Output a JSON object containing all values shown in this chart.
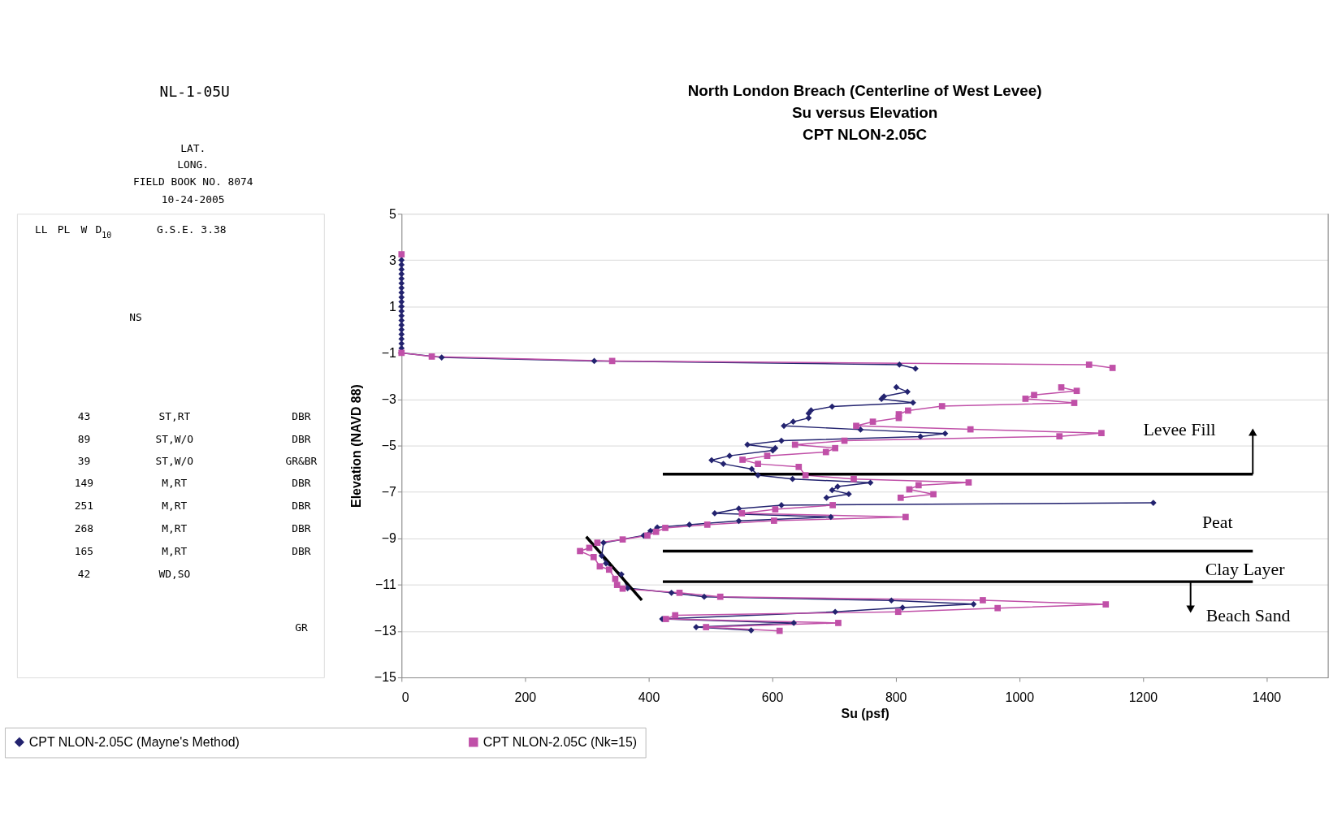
{
  "chart_data": [
    {
      "type": "other",
      "title": "NL-1-05U",
      "annotations": [
        "LAT.",
        "LONG.",
        "FIELD BOOK NO. 8074",
        "10-24-2005",
        "LL",
        "PL",
        "W",
        "D",
        "10",
        "G.S.E. 3.38",
        "NS",
        "43",
        "ST,RT",
        "DBR",
        "89",
        "ST,W/O",
        "DBR",
        "39",
        "ST,W/O",
        "GR&BR",
        "149",
        "M,RT",
        "DBR",
        "251",
        "M,RT",
        "DBR",
        "268",
        "M,RT",
        "DBR",
        "165",
        "M,RT",
        "DBR",
        "42",
        "WD,SO",
        "GR"
      ]
    },
    {
      "type": "line",
      "title": "North London Breach (Centerline of West Levee)\nSu versus Elevation\nCPT NLON-2.05C",
      "xlabel": "Su (psf)",
      "ylabel": "Elevation (NAVD 88)",
      "xlim": [
        0,
        1500
      ],
      "xticks": [
        0,
        200,
        400,
        600,
        800,
        1000,
        1200,
        1400
      ],
      "ylim": [
        -15,
        5
      ],
      "yticks": [
        -15,
        -13,
        -11,
        -9,
        -7,
        -5,
        -3,
        -1,
        1,
        3,
        5
      ],
      "grid": "y",
      "legend": "bottom",
      "series": [
        {
          "name": "CPT NLON-2.05C (Mayne's Method)",
          "color": "#23236f",
          "marker": "diamond",
          "x": [
            0,
            0,
            0,
            0,
            0,
            0,
            0,
            0,
            0,
            0,
            0,
            0,
            0,
            0,
            0,
            0,
            0,
            0,
            0,
            0,
            0,
            65,
            312,
            806,
            832,
            null,
            801,
            819,
            781,
            777,
            828,
            697,
            663,
            659,
            659,
            634,
            619,
            743,
            880,
            840,
            615,
            560,
            605,
            601,
            531,
            502,
            521,
            567,
            577,
            633,
            759,
            706,
            697,
            724,
            688,
            null,
            1217,
            615,
            546,
            507,
            695,
            546,
            466,
            414,
            403,
            392,
            327,
            324,
            331,
            356,
            366,
            437,
            490,
            793,
            926,
            811,
            702,
            422,
            635,
            477,
            566
          ],
          "values": [
            3.0,
            2.8,
            2.6,
            2.4,
            2.2,
            2.0,
            1.8,
            1.6,
            1.4,
            1.2,
            1.0,
            0.8,
            0.6,
            0.4,
            0.2,
            0.0,
            -0.2,
            -0.4,
            -0.6,
            -0.8,
            -1.0,
            -1.2,
            -1.35,
            -1.51,
            -1.68,
            null,
            -2.48,
            -2.68,
            -2.88,
            -2.99,
            -3.15,
            -3.32,
            -3.48,
            -3.61,
            -3.81,
            -3.97,
            -4.15,
            -4.31,
            -4.48,
            -4.61,
            -4.79,
            -4.96,
            -5.11,
            -5.21,
            -5.44,
            -5.63,
            -5.79,
            -6.01,
            -6.28,
            -6.44,
            -6.6,
            -6.77,
            -6.92,
            -7.09,
            -7.25,
            null,
            -7.47,
            -7.57,
            -7.72,
            -7.92,
            -8.08,
            -8.25,
            -8.41,
            -8.53,
            -8.68,
            -8.88,
            -9.19,
            -9.75,
            -10.08,
            -10.55,
            -11.15,
            -11.35,
            -11.52,
            -11.68,
            -11.84,
            -11.99,
            -12.17,
            -12.48,
            -12.65,
            -12.83,
            -12.97
          ]
        },
        {
          "name": "CPT NLON-2.05C (Nk=15)",
          "color": "#c050a8",
          "marker": "square",
          "x": [
            0,
            0,
            49,
            341,
            1113,
            1151,
            null,
            1068,
            1093,
            1024,
            1010,
            1089,
            875,
            820,
            805,
            805,
            763,
            736,
            921,
            1133,
            1065,
            717,
            637,
            702,
            687,
            592,
            552,
            577,
            643,
            654,
            732,
            918,
            837,
            822,
            861,
            808,
            null,
            698,
            605,
            551,
            816,
            603,
            495,
            427,
            412,
            398,
            358,
            317,
            304,
            289,
            311,
            321,
            336,
            346,
            349,
            358,
            450,
            516,
            941,
            1140,
            965,
            804,
            443,
            428,
            707,
            493,
            612
          ],
          "values": [
            3.25,
            -1.0,
            -1.16,
            -1.35,
            -1.51,
            -1.65,
            null,
            -2.49,
            -2.64,
            -2.82,
            -2.98,
            -3.16,
            -3.3,
            -3.49,
            -3.65,
            -3.81,
            -3.97,
            -4.15,
            -4.3,
            -4.46,
            -4.6,
            -4.79,
            -4.96,
            -5.11,
            -5.28,
            -5.44,
            -5.61,
            -5.79,
            -5.92,
            -6.28,
            -6.44,
            -6.59,
            -6.71,
            -6.89,
            -7.1,
            -7.25,
            null,
            -7.57,
            -7.75,
            -7.92,
            -8.08,
            -8.24,
            -8.41,
            -8.55,
            -8.72,
            -8.88,
            -9.05,
            -9.19,
            -9.41,
            -9.55,
            -9.81,
            -10.21,
            -10.35,
            -10.75,
            -11.01,
            -11.17,
            -11.35,
            -11.52,
            -11.67,
            -11.85,
            -12.01,
            -12.17,
            -12.32,
            -12.48,
            -12.65,
            -12.83,
            -12.99
          ]
        },
        {
          "type": "line",
          "color": "#000000",
          "marker": "none",
          "x": [
            423,
            1378
          ],
          "values": [
            -6.23,
            -6.23
          ]
        },
        {
          "type": "line",
          "color": "#000000",
          "marker": "none",
          "x": [
            423,
            1378
          ],
          "values": [
            -9.55,
            -9.55
          ]
        },
        {
          "type": "line",
          "color": "#000000",
          "marker": "none",
          "x": [
            423,
            1378
          ],
          "values": [
            -10.87,
            -10.87
          ]
        },
        {
          "type": "line",
          "color": "#000000",
          "marker": "none",
          "x": [
            299,
            389
          ],
          "values": [
            -8.93,
            -11.67
          ]
        }
      ],
      "annotations": [
        "Levee Fill",
        "Peat",
        "Clay Layer",
        "Beach Sand"
      ]
    }
  ]
}
